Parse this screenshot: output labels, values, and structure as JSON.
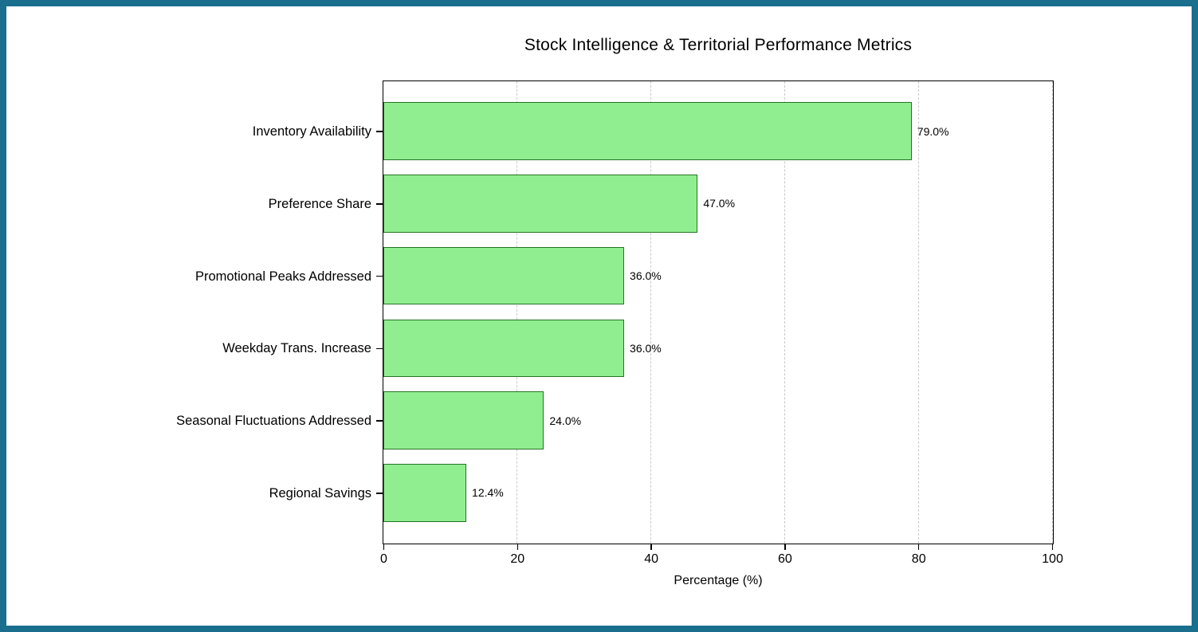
{
  "chart_data": {
    "type": "bar",
    "orientation": "horizontal",
    "title": "Stock Intelligence & Territorial Performance Metrics",
    "categories": [
      "Inventory Availability",
      "Preference Share",
      "Promotional Peaks Addressed",
      "Weekday Trans. Increase",
      "Seasonal Fluctuations Addressed",
      "Regional Savings"
    ],
    "values": [
      79.0,
      47.0,
      36.0,
      36.0,
      24.0,
      12.4
    ],
    "value_labels": [
      "79.0%",
      "47.0%",
      "36.0%",
      "36.0%",
      "24.0%",
      "12.4%"
    ],
    "xlabel": "Percentage (%)",
    "xlim": [
      0,
      100
    ],
    "x_ticks": [
      0,
      20,
      40,
      60,
      80,
      100
    ],
    "x_tick_labels": [
      "0",
      "20",
      "40",
      "60",
      "80",
      "100"
    ],
    "grid": {
      "axis": "x",
      "style": "dashed",
      "visible": true,
      "color": "#c9c9c9"
    },
    "legend": null,
    "colors": {
      "bar_fill": "#90ee90",
      "bar_edge": "#267326",
      "spine": "#000000",
      "text": "#000000",
      "frame_border": "#1a6e8e",
      "background": "#ffffff"
    }
  }
}
